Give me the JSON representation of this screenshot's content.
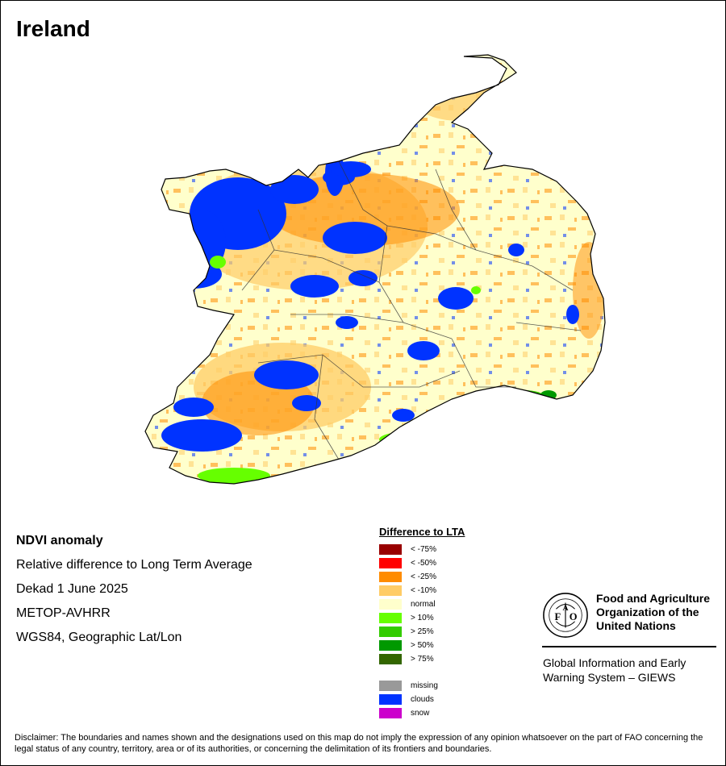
{
  "title": "Ireland",
  "info": {
    "heading": "NDVI anomaly",
    "line1": "Relative difference to Long Term Average",
    "line2": "Dekad 1 June 2025",
    "line3": "METOP-AVHRR",
    "line4": "WGS84, Geographic Lat/Lon"
  },
  "legend": {
    "title": "Difference to LTA",
    "items": [
      {
        "label": "< -75%",
        "color": "#990000"
      },
      {
        "label": "< -50%",
        "color": "#ff0000"
      },
      {
        "label": "< -25%",
        "color": "#ff8c00"
      },
      {
        "label": "< -10%",
        "color": "#ffcc66"
      },
      {
        "label": "normal",
        "color": "#ffffcc"
      },
      {
        "label": "> 10%",
        "color": "#66ff00"
      },
      {
        "label": "> 25%",
        "color": "#33cc00"
      },
      {
        "label": "> 50%",
        "color": "#009900"
      },
      {
        "label": "> 75%",
        "color": "#336600"
      }
    ],
    "extra": [
      {
        "label": "missing",
        "color": "#999999"
      },
      {
        "label": "clouds",
        "color": "#0033ff"
      },
      {
        "label": "snow",
        "color": "#cc00cc"
      }
    ]
  },
  "fao": {
    "logo_letters": [
      "F",
      "A",
      "O"
    ],
    "name": "Food and Agriculture\nOrganization of the\nUnited Nations",
    "giews": "Global Information and Early\nWarning System – GIEWS"
  },
  "disclaimer": "Disclaimer: The boundaries and names shown and the designations used on this map do not imply the expression of any opinion whatsoever on the part of FAO concerning the legal status of any country, territory, area or of its authorities, or concerning the delimitation of its frontiers and boundaries."
}
